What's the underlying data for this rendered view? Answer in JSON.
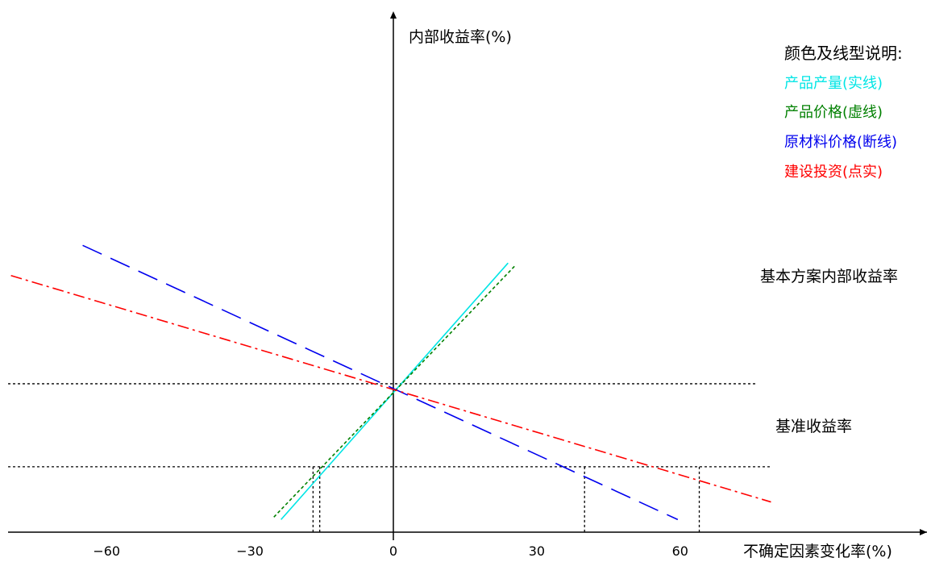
{
  "chart_data": {
    "type": "line",
    "xlabel": "不确定因素变化率(%)",
    "ylabel": "内部收益率(%)",
    "x_ticks": [
      -60,
      -30,
      0,
      30,
      60
    ],
    "xlim": [
      -82,
      112
    ],
    "ylim": [
      0,
      100
    ],
    "grid": false,
    "legend_title": "颜色及线型说明:",
    "legend_position": "top-right",
    "reference_lines": [
      {
        "label": "基本方案内部收益率",
        "y": 59,
        "style": "dotted"
      },
      {
        "label": "基准收益率",
        "y": 26,
        "style": "dotted"
      }
    ],
    "series": [
      {
        "name": "产品产量(实线)",
        "color": "#00e5e5",
        "dash": "solid",
        "x": [
          -23.5,
          24
        ],
        "y": [
          5,
          107
        ]
      },
      {
        "name": "产品价格(虚线)",
        "color": "#008000",
        "dash": "short-dash",
        "x": [
          -25,
          25.5
        ],
        "y": [
          6,
          106
        ]
      },
      {
        "name": "原材料价格(断线)",
        "color": "#0000ee",
        "dash": "long-dash",
        "x": [
          -65,
          59.5
        ],
        "y": [
          114,
          5
        ]
      },
      {
        "name": "建设投资(点实)",
        "color": "#ff0000",
        "dash": "dash-dot",
        "x": [
          -80,
          79
        ],
        "y": [
          102,
          12
        ]
      }
    ],
    "crossing_x": [
      -16.8,
      -15.4,
      40,
      64
    ]
  }
}
